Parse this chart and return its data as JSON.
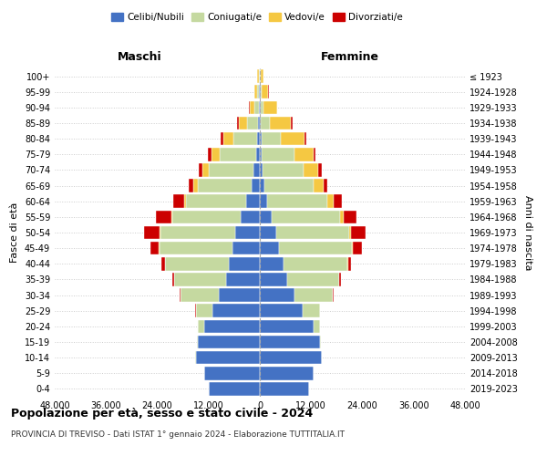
{
  "age_groups": [
    "0-4",
    "5-9",
    "10-14",
    "15-19",
    "20-24",
    "25-29",
    "30-34",
    "35-39",
    "40-44",
    "45-49",
    "50-54",
    "55-59",
    "60-64",
    "65-69",
    "70-74",
    "75-79",
    "80-84",
    "85-89",
    "90-94",
    "95-99",
    "100+"
  ],
  "birth_years": [
    "2019-2023",
    "2014-2018",
    "2009-2013",
    "2004-2008",
    "1999-2003",
    "1994-1998",
    "1989-1993",
    "1984-1988",
    "1979-1983",
    "1974-1978",
    "1969-1973",
    "1964-1968",
    "1959-1963",
    "1954-1958",
    "1949-1953",
    "1944-1948",
    "1939-1943",
    "1934-1938",
    "1929-1933",
    "1924-1928",
    "≤ 1923"
  ],
  "colors": {
    "celibi": "#4472c4",
    "coniugati": "#c5d9a0",
    "vedovi": "#f5c842",
    "divorziati": "#cc0000"
  },
  "males": {
    "celibi": [
      12000,
      13000,
      15000,
      14500,
      13000,
      11000,
      9500,
      8000,
      7200,
      6500,
      5800,
      4500,
      3200,
      2000,
      1500,
      900,
      600,
      400,
      300,
      200,
      100
    ],
    "coniugati": [
      0,
      0,
      50,
      200,
      1500,
      4000,
      9000,
      12000,
      15000,
      17000,
      17500,
      16000,
      14000,
      12500,
      10500,
      8500,
      5500,
      2500,
      900,
      400,
      200
    ],
    "vedovi": [
      0,
      0,
      0,
      5,
      10,
      10,
      20,
      30,
      50,
      100,
      200,
      300,
      500,
      1000,
      1500,
      2000,
      2500,
      2000,
      1200,
      600,
      300
    ],
    "divorziati": [
      0,
      0,
      10,
      30,
      50,
      100,
      200,
      400,
      800,
      2000,
      3500,
      3500,
      2500,
      1200,
      900,
      700,
      600,
      400,
      200,
      100,
      100
    ]
  },
  "females": {
    "celibi": [
      11500,
      12500,
      14500,
      14000,
      12500,
      10000,
      8000,
      6500,
      5500,
      4500,
      3800,
      2800,
      1800,
      1000,
      700,
      500,
      400,
      300,
      250,
      200,
      100
    ],
    "coniugati": [
      0,
      0,
      50,
      200,
      1500,
      4000,
      9000,
      12000,
      15000,
      17000,
      17000,
      16000,
      14000,
      11500,
      9500,
      7500,
      4500,
      2000,
      700,
      300,
      100
    ],
    "vedovi": [
      0,
      0,
      0,
      5,
      10,
      20,
      40,
      80,
      150,
      300,
      500,
      800,
      1500,
      2500,
      3500,
      4500,
      5500,
      5000,
      3000,
      1500,
      600
    ],
    "divorziati": [
      0,
      0,
      10,
      20,
      50,
      100,
      200,
      400,
      700,
      2000,
      3500,
      3000,
      2000,
      800,
      700,
      500,
      400,
      300,
      150,
      100,
      50
    ]
  },
  "xlim": 48000,
  "xticks": [
    -48000,
    -36000,
    -24000,
    -12000,
    0,
    12000,
    24000,
    36000,
    48000
  ],
  "xtick_labels": [
    "48.000",
    "36.000",
    "24.000",
    "12.000",
    "0",
    "12.000",
    "24.000",
    "36.000",
    "48.000"
  ],
  "title": "Popolazione per età, sesso e stato civile - 2024",
  "subtitle": "PROVINCIA DI TREVISO - Dati ISTAT 1° gennaio 2024 - Elaborazione TUTTITALIA.IT",
  "ylabel_left": "Fasce di età",
  "ylabel_right": "Anni di nascita",
  "label_maschi": "Maschi",
  "label_femmine": "Femmine",
  "legend_labels": [
    "Celibi/Nubili",
    "Coniugati/e",
    "Vedovi/e",
    "Divorziati/e"
  ],
  "background_color": "#ffffff",
  "grid_color": "#cccccc"
}
